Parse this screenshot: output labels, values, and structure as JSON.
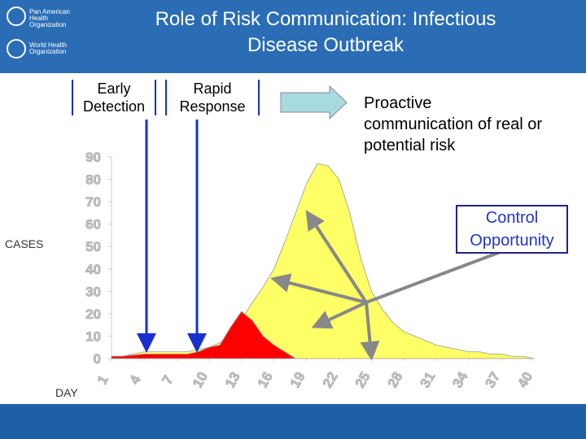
{
  "chart_data": {
    "type": "area",
    "title": "Role of Risk Communication: Infectious Disease Outbreak",
    "logos": [
      "Pan American Health Organization",
      "World Health Organization"
    ],
    "ylabel": "CASES",
    "xlabel": "DAY",
    "x": [
      1,
      2,
      3,
      4,
      5,
      6,
      7,
      8,
      9,
      10,
      11,
      12,
      13,
      14,
      15,
      16,
      17,
      18,
      19,
      20,
      21,
      22,
      23,
      24,
      25,
      26,
      27,
      28,
      29,
      30,
      31,
      32,
      33,
      34,
      35,
      36,
      37,
      38,
      39,
      40
    ],
    "series": [
      {
        "color": "#ffff66",
        "values": [
          1,
          1,
          2,
          3,
          3,
          3,
          3,
          3,
          4,
          5,
          7,
          10,
          17,
          25,
          32,
          40,
          52,
          65,
          78,
          87,
          86,
          80,
          65,
          45,
          30,
          22,
          16,
          12,
          10,
          8,
          6,
          5,
          4,
          3,
          3,
          2,
          2,
          1,
          1,
          0
        ]
      },
      {
        "color": "#ff0000",
        "values": [
          1,
          1,
          1.5,
          2,
          2,
          2,
          2,
          2,
          3,
          5,
          6,
          14,
          21,
          17,
          10,
          6,
          3,
          0,
          null,
          null,
          null,
          null,
          null,
          null,
          null,
          null,
          null,
          null,
          null,
          null,
          null,
          null,
          null,
          null,
          null,
          null,
          null,
          null,
          null,
          null
        ]
      }
    ],
    "xlim": [
      1,
      40
    ],
    "ylim": [
      0,
      90
    ],
    "xticks": [
      1,
      4,
      7,
      10,
      13,
      16,
      19,
      22,
      25,
      28,
      31,
      34,
      37,
      40
    ],
    "yticks": [
      0,
      10,
      20,
      30,
      40,
      50,
      60,
      70,
      80,
      90
    ],
    "annotations": [
      "Early Detection",
      "Rapid Response",
      "Proactive communication of real or potential risk",
      "Control Opportunity"
    ]
  }
}
